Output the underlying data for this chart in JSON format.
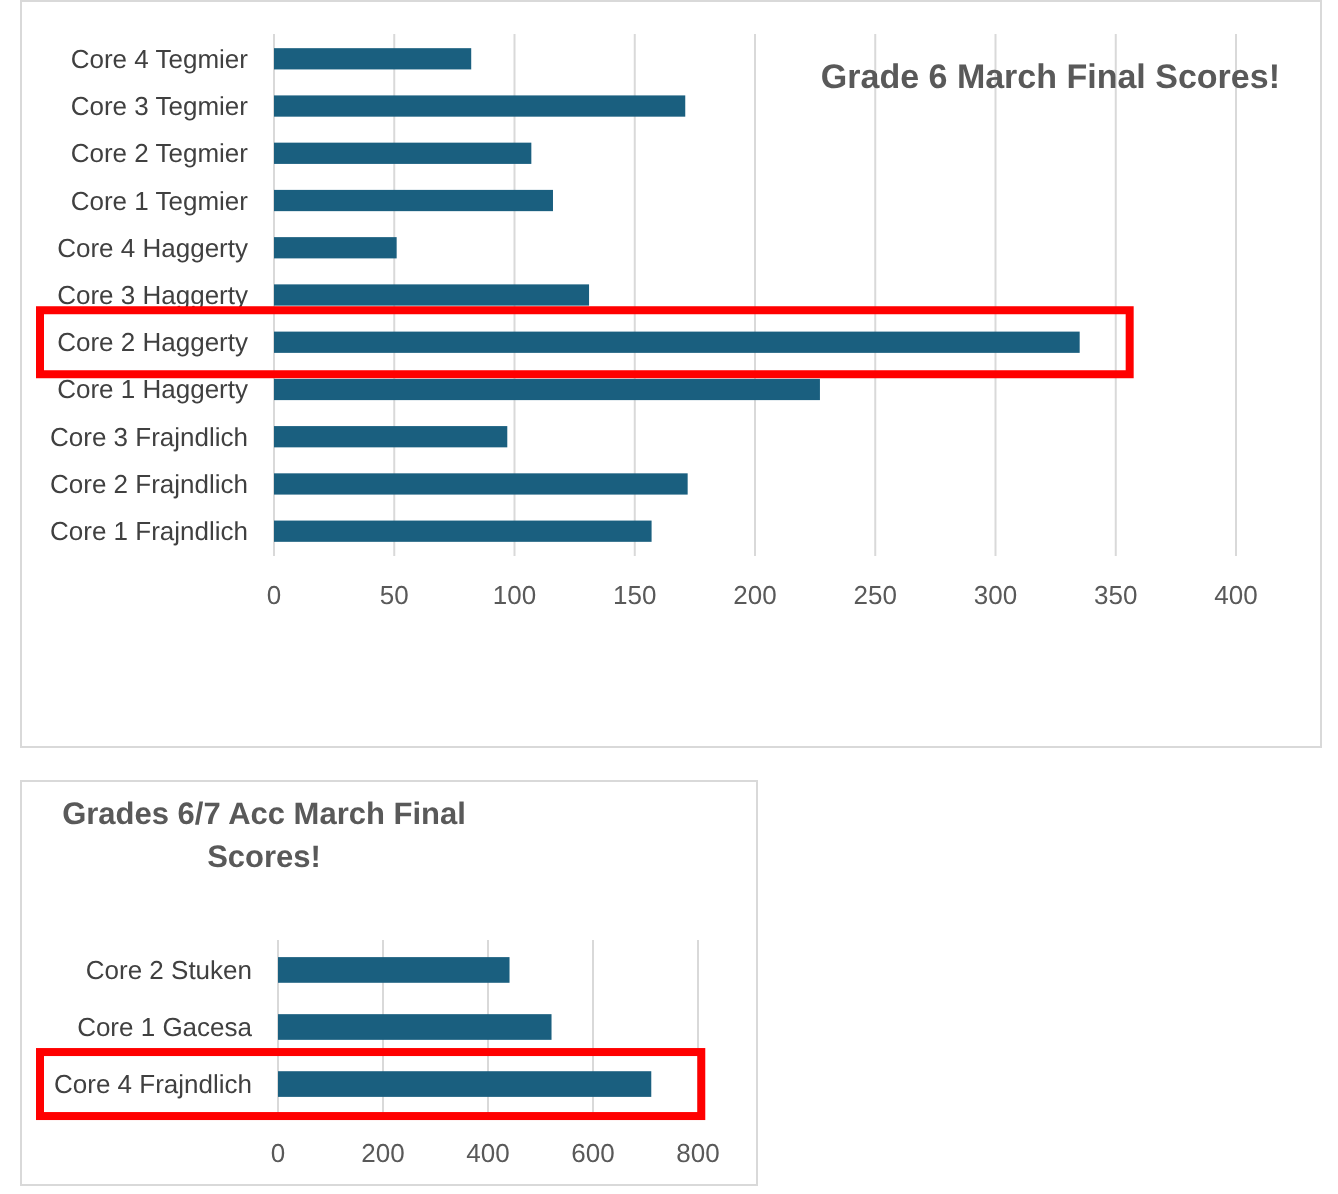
{
  "chart_data": [
    {
      "type": "bar",
      "orientation": "horizontal",
      "title": "Grade 6 March Final Scores!",
      "categories": [
        "Core 4 Tegmier",
        "Core 3 Tegmier",
        "Core 2 Tegmier",
        "Core 1 Tegmier",
        "Core 4 Haggerty",
        "Core 3 Haggerty",
        "Core 2 Haggerty",
        "Core 1 Haggerty",
        "Core 3 Frajndlich",
        "Core 2 Frajndlich",
        "Core 1 Frajndlich"
      ],
      "values": [
        82,
        171,
        107,
        116,
        51,
        131,
        335,
        227,
        97,
        172,
        157
      ],
      "color": "#1a5f7f",
      "xlim": [
        0,
        400
      ],
      "xticks": [
        0,
        50,
        100,
        150,
        200,
        250,
        300,
        350,
        400
      ],
      "grid": "x"
    },
    {
      "type": "bar",
      "orientation": "horizontal",
      "title": "Grades 6/7 Acc March Final Scores!",
      "categories": [
        "Core 2 Stuken",
        "Core 1 Gacesa",
        "Core 4 Frajndlich"
      ],
      "values": [
        441,
        521,
        711
      ],
      "color": "#1a5f7f",
      "xlim": [
        0,
        800
      ],
      "xticks": [
        0,
        200,
        400,
        600,
        800
      ],
      "grid": "x"
    }
  ]
}
